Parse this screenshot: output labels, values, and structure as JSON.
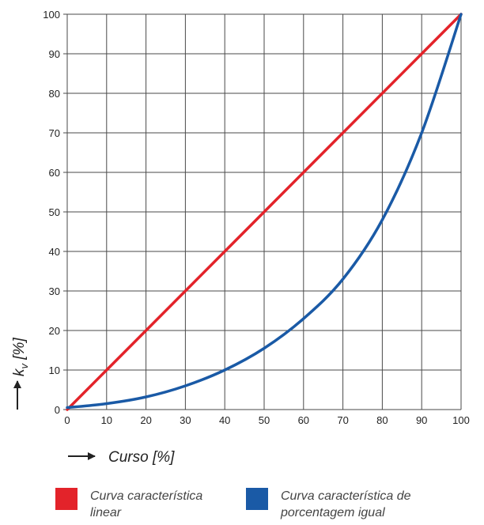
{
  "chart_data": {
    "type": "line",
    "x": [
      0,
      10,
      20,
      30,
      40,
      50,
      60,
      70,
      80,
      90,
      100
    ],
    "series": [
      {
        "name": "Curva característica linear",
        "color": "#e3232a",
        "values": [
          0,
          10,
          20,
          30,
          40,
          50,
          60,
          70,
          80,
          90,
          100
        ]
      },
      {
        "name": "Curva característica de porcentagem igual",
        "color": "#1a5aa6",
        "values": [
          0.5,
          1.5,
          3.2,
          6,
          10,
          15.5,
          23,
          33,
          48,
          70,
          100
        ]
      }
    ],
    "xlabel": "Curso [%]",
    "ylabel": "k",
    "ylabel_sub": "v",
    "ylabel_unit": " [%]",
    "xlim": [
      0,
      100
    ],
    "ylim": [
      0,
      100
    ],
    "xticks": [
      "0",
      "10",
      "20",
      "30",
      "40",
      "50",
      "60",
      "70",
      "80",
      "90",
      "100"
    ],
    "yticks": [
      "0",
      "10",
      "20",
      "30",
      "40",
      "50",
      "60",
      "70",
      "80",
      "90",
      "100"
    ],
    "grid": true,
    "legend_position": "bottom"
  },
  "legend": {
    "linear_line1": "Curva característica",
    "linear_line2": "linear",
    "equal_line1": "Curva característica de",
    "equal_line2": "porcentagem igual",
    "linear_color": "#e3232a",
    "equal_color": "#1a5aa6"
  }
}
